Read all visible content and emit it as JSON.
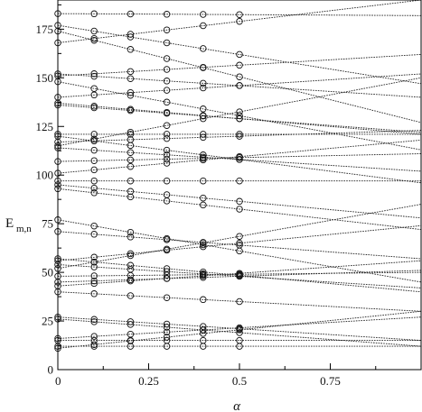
{
  "chart_data": {
    "type": "line",
    "title": "",
    "xlabel": "α",
    "ylabel": "E",
    "ylabel_subscript": "m,n",
    "xlim": [
      0,
      1
    ],
    "ylim": [
      0,
      190
    ],
    "grid": false,
    "legend": "none",
    "xticks": [
      {
        "value": 0,
        "label": "0"
      },
      {
        "value": 0.25,
        "label": "0.25"
      },
      {
        "value": 0.5,
        "label": "0.5"
      },
      {
        "value": 0.75,
        "label": "0.75"
      }
    ],
    "yticks": [
      {
        "value": 0,
        "label": "0"
      },
      {
        "value": 25,
        "label": "25"
      },
      {
        "value": 50,
        "label": "50"
      },
      {
        "value": 75,
        "label": "75"
      },
      {
        "value": 100,
        "label": "100"
      },
      {
        "value": 125,
        "label": "125"
      },
      {
        "value": 150,
        "label": "150"
      },
      {
        "value": 175,
        "label": "175"
      }
    ],
    "marker_x": [
      0,
      0.1,
      0.2,
      0.3,
      0.4,
      0.5
    ],
    "series": [
      {
        "values": [
          [
            0,
            12
          ],
          [
            1,
            12
          ]
        ]
      },
      {
        "values": [
          [
            0,
            15
          ],
          [
            1,
            15
          ]
        ]
      },
      {
        "values": [
          [
            0,
            11
          ],
          [
            1,
            30
          ]
        ]
      },
      {
        "values": [
          [
            0,
            16
          ],
          [
            1,
            27
          ]
        ]
      },
      {
        "values": [
          [
            0,
            27
          ],
          [
            1,
            15
          ]
        ]
      },
      {
        "values": [
          [
            0,
            26
          ],
          [
            1,
            12
          ]
        ]
      },
      {
        "values": [
          [
            0,
            40
          ],
          [
            1,
            30
          ]
        ]
      },
      {
        "values": [
          [
            0,
            43
          ],
          [
            1,
            56
          ]
        ]
      },
      {
        "values": [
          [
            0,
            45
          ],
          [
            1,
            51
          ]
        ]
      },
      {
        "values": [
          [
            0,
            48
          ],
          [
            1,
            50
          ]
        ]
      },
      {
        "values": [
          [
            0,
            54
          ],
          [
            1,
            42
          ]
        ]
      },
      {
        "values": [
          [
            0,
            57
          ],
          [
            1,
            40
          ]
        ]
      },
      {
        "values": [
          [
            0,
            52
          ],
          [
            1,
            85
          ]
        ]
      },
      {
        "values": [
          [
            0,
            56
          ],
          [
            1,
            74
          ]
        ]
      },
      {
        "values": [
          [
            0,
            71
          ],
          [
            1,
            57
          ]
        ]
      },
      {
        "values": [
          [
            0,
            77
          ],
          [
            1,
            45
          ]
        ]
      },
      {
        "values": [
          [
            0,
            93
          ],
          [
            1,
            72
          ]
        ]
      },
      {
        "values": [
          [
            0,
            95
          ],
          [
            1,
            78
          ]
        ]
      },
      {
        "values": [
          [
            0,
            97
          ],
          [
            1,
            97
          ]
        ]
      },
      {
        "values": [
          [
            0,
            101
          ],
          [
            1,
            118
          ]
        ]
      },
      {
        "values": [
          [
            0,
            107
          ],
          [
            1,
            111
          ]
        ]
      },
      {
        "values": [
          [
            0,
            114
          ],
          [
            1,
            102
          ]
        ]
      },
      {
        "values": [
          [
            0,
            117
          ],
          [
            1,
            123
          ]
        ]
      },
      {
        "values": [
          [
            0,
            120
          ],
          [
            1,
            96
          ]
        ]
      },
      {
        "values": [
          [
            0,
            121
          ],
          [
            1,
            121
          ]
        ]
      },
      {
        "values": [
          [
            0,
            115
          ],
          [
            1,
            150
          ]
        ]
      },
      {
        "values": [
          [
            0,
            137
          ],
          [
            1,
            121
          ]
        ]
      },
      {
        "values": [
          [
            0,
            136
          ],
          [
            1,
            122
          ]
        ]
      },
      {
        "values": [
          [
            0,
            140
          ],
          [
            1,
            152
          ]
        ]
      },
      {
        "values": [
          [
            0,
            148
          ],
          [
            1,
            113
          ]
        ]
      },
      {
        "values": [
          [
            0,
            151
          ],
          [
            1,
            162
          ]
        ]
      },
      {
        "values": [
          [
            0,
            152
          ],
          [
            1,
            140
          ]
        ]
      },
      {
        "values": [
          [
            0,
            168
          ],
          [
            1,
            190
          ]
        ]
      },
      {
        "values": [
          [
            0,
            174
          ],
          [
            1,
            127
          ]
        ]
      },
      {
        "values": [
          [
            0,
            177
          ],
          [
            1,
            147
          ]
        ]
      },
      {
        "values": [
          [
            0,
            183
          ],
          [
            1,
            182
          ]
        ]
      }
    ]
  }
}
